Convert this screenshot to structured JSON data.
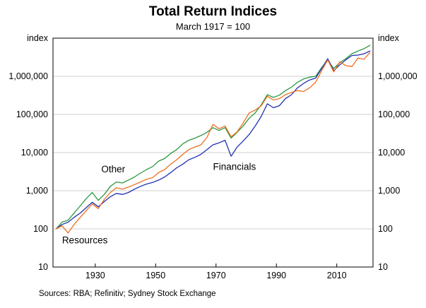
{
  "title": "Total Return Indices",
  "subtitle": "March 1917 = 100",
  "source": "Sources: RBA; Refinitiv; Sydney Stock Exchange",
  "chart_data": {
    "type": "line",
    "title": "Total Return Indices",
    "subtitle": "March 1917 = 100",
    "yscale": "log",
    "grid": true,
    "xlim": [
      1916,
      2022
    ],
    "ylim": [
      10,
      10000000
    ],
    "axis_unit": "index",
    "x_ticks": [
      1930,
      1950,
      1970,
      1990,
      2010
    ],
    "y_ticks": [
      10,
      100,
      1000,
      10000,
      100000,
      1000000
    ],
    "y_tick_labels": [
      "10",
      "100",
      "1,000",
      "10,000",
      "100,000",
      "1,000,000"
    ],
    "x": [
      1917,
      1919,
      1921,
      1923,
      1925,
      1927,
      1929,
      1931,
      1933,
      1935,
      1937,
      1939,
      1941,
      1943,
      1945,
      1947,
      1949,
      1951,
      1953,
      1955,
      1957,
      1959,
      1961,
      1963,
      1965,
      1967,
      1969,
      1971,
      1973,
      1975,
      1977,
      1979,
      1981,
      1983,
      1985,
      1987,
      1989,
      1991,
      1993,
      1995,
      1997,
      1999,
      2001,
      2003,
      2005,
      2007,
      2009,
      2011,
      2013,
      2015,
      2017,
      2019,
      2021
    ],
    "series": [
      {
        "name": "Other",
        "color": "#2c9942",
        "label": "Other",
        "label_pos": {
          "year": 1932,
          "value": 3000
        },
        "values": [
          100,
          150,
          170,
          260,
          400,
          620,
          900,
          560,
          800,
          1300,
          1700,
          1600,
          1900,
          2300,
          2900,
          3600,
          4300,
          6000,
          7000,
          9500,
          12000,
          17000,
          21000,
          24000,
          28000,
          34000,
          45000,
          38000,
          45000,
          24000,
          34000,
          50000,
          80000,
          110000,
          180000,
          330000,
          280000,
          320000,
          420000,
          520000,
          700000,
          850000,
          950000,
          1000000,
          1700000,
          2600000,
          1600000,
          2300000,
          2900000,
          3900000,
          4600000,
          5300000,
          6500000
        ]
      },
      {
        "name": "Financials",
        "color": "#2031b0",
        "label": "Financials",
        "label_pos": {
          "year": 1969,
          "value": 3500
        },
        "values": [
          100,
          130,
          150,
          200,
          260,
          360,
          500,
          380,
          520,
          700,
          850,
          800,
          900,
          1100,
          1300,
          1500,
          1650,
          1900,
          2300,
          3000,
          4000,
          5000,
          6500,
          7500,
          9000,
          12000,
          16000,
          18000,
          21000,
          8000,
          14000,
          20000,
          30000,
          50000,
          90000,
          190000,
          150000,
          170000,
          260000,
          330000,
          500000,
          650000,
          800000,
          900000,
          1600000,
          2900000,
          1400000,
          2000000,
          2700000,
          3500000,
          3600000,
          3900000,
          4600000
        ]
      },
      {
        "name": "Resources",
        "color": "#ee6f20",
        "label": "Resources",
        "label_pos": {
          "year": 1919,
          "value": 42
        },
        "values": [
          100,
          120,
          78,
          130,
          200,
          300,
          450,
          340,
          600,
          900,
          1200,
          1100,
          1250,
          1450,
          1700,
          2000,
          2200,
          3000,
          3600,
          5000,
          6500,
          9000,
          12000,
          14000,
          16000,
          25000,
          55000,
          42000,
          50000,
          26000,
          35000,
          60000,
          110000,
          130000,
          170000,
          300000,
          240000,
          260000,
          330000,
          380000,
          420000,
          400000,
          500000,
          700000,
          1400000,
          2700000,
          1300000,
          2400000,
          1900000,
          1800000,
          3000000,
          2800000,
          4200000
        ]
      }
    ]
  }
}
